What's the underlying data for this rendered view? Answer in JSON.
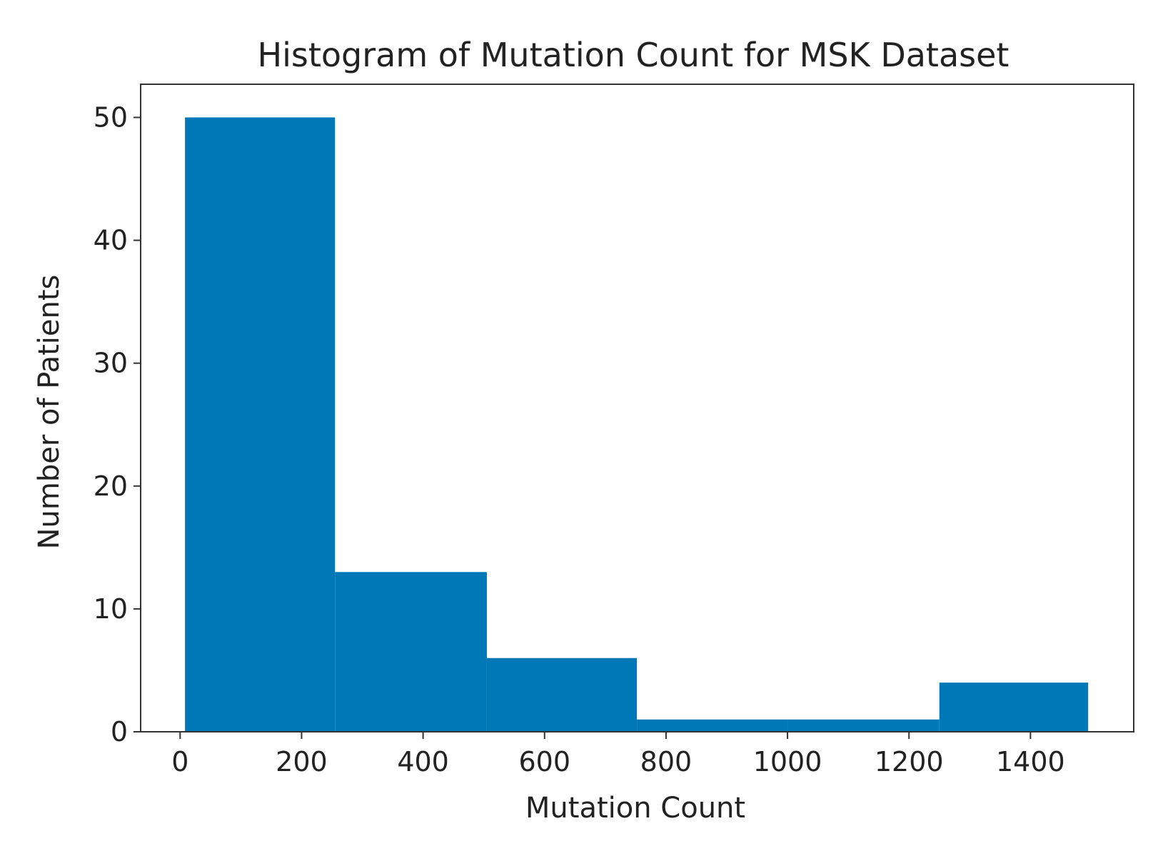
{
  "chart_data": {
    "type": "bar",
    "histogram": true,
    "title": "Histogram of Mutation Count for MSK Dataset",
    "xlabel": "Mutation Count",
    "ylabel": "Number of Patients",
    "bins": [
      {
        "start": 8,
        "end": 255,
        "count": 50
      },
      {
        "start": 255,
        "end": 505,
        "count": 13
      },
      {
        "start": 505,
        "end": 752,
        "count": 6
      },
      {
        "start": 752,
        "end": 1000,
        "count": 1
      },
      {
        "start": 1000,
        "end": 1250,
        "count": 1
      },
      {
        "start": 1250,
        "end": 1495,
        "count": 4
      }
    ],
    "xlim": [
      -65,
      1570
    ],
    "ylim": [
      0,
      52.7
    ],
    "xticks": [
      0,
      200,
      400,
      600,
      800,
      1000,
      1200,
      1400
    ],
    "yticks": [
      0,
      10,
      20,
      30,
      40,
      50
    ],
    "grid": false,
    "legend": "none",
    "bar_color": "#0077b6"
  }
}
